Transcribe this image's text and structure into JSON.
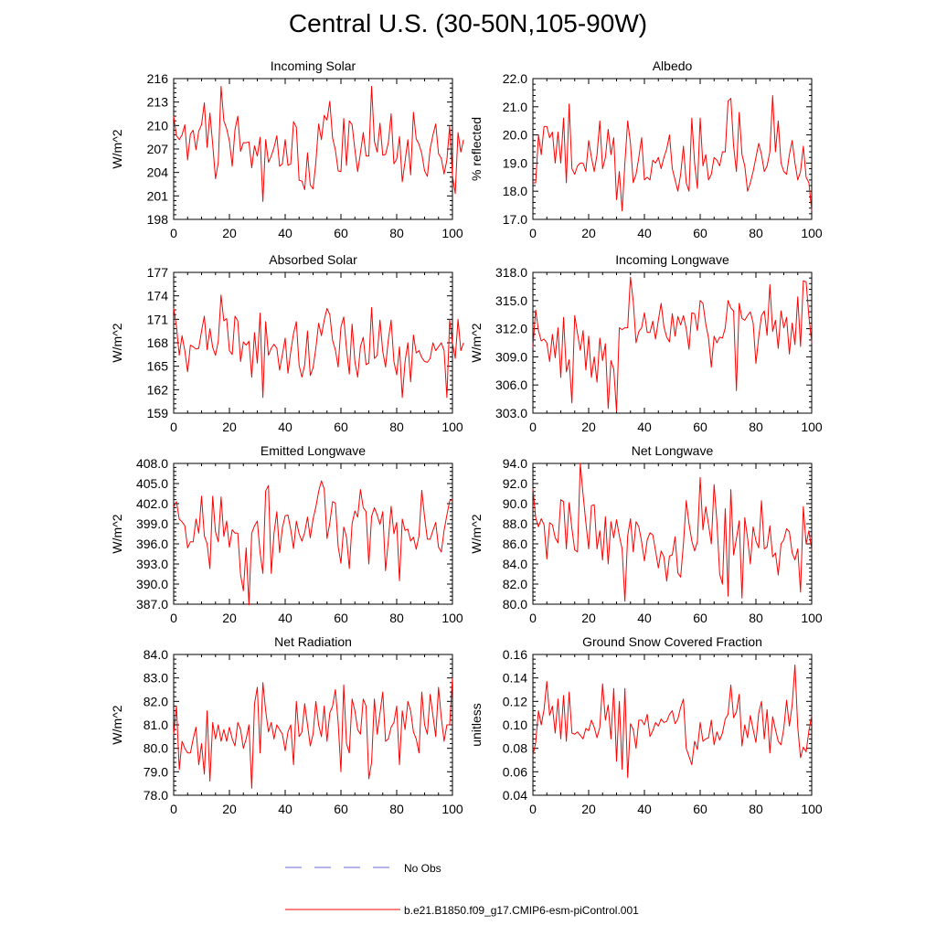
{
  "title": "Central U.S. (30-50N,105-90W)",
  "colors": {
    "series": "#ff0000",
    "obs": "#6a6ad8",
    "axis": "#000000"
  },
  "legend": [
    {
      "label": "No Obs",
      "style": "dashed",
      "color": "#6a6ad8"
    },
    {
      "label": "b.e21.B1850.f09_g17.CMIP6-esm-piControl.001",
      "style": "solid",
      "color": "#ff0000"
    }
  ],
  "chart_data": [
    {
      "type": "line",
      "title": "Incoming Solar",
      "ylabel": "W/m^2",
      "xlim": [
        0,
        100
      ],
      "ylim": [
        198,
        216
      ],
      "xticks": [
        "0",
        "20",
        "40",
        "60",
        "80",
        "100"
      ],
      "yticks": [
        "198",
        "201",
        "204",
        "207",
        "210",
        "213",
        "216"
      ],
      "series": [
        {
          "values": [
            211.2,
            208.7,
            208.2,
            208.8,
            210.1,
            205.6,
            208.9,
            209.4,
            206.9,
            209.3,
            210.1,
            212.9,
            207.2,
            211.6,
            207.6,
            203.2,
            205.3,
            215.0,
            210.6,
            209.6,
            208.0,
            204.8,
            209.5,
            211.2,
            206.7,
            207.8,
            207.8,
            207.9,
            204.6,
            207.4,
            206.1,
            208.5,
            200.3,
            208.2,
            205.3,
            206.1,
            207.2,
            208.7,
            204.8,
            205.1,
            208.2,
            204.9,
            205.1,
            210.5,
            209.8,
            203.0,
            202.9,
            201.8,
            206.5,
            202.4,
            201.9,
            205.3,
            210.2,
            208.2,
            211.3,
            210.7,
            213.1,
            208.4,
            206.9,
            204.2,
            204.1,
            210.9,
            204.9,
            210.6,
            210.1,
            206.9,
            204.1,
            206.5,
            209.1,
            206.1,
            206.1,
            215.0,
            208.0,
            206.6,
            210.3,
            206.2,
            206.3,
            207.8,
            211.5,
            205.1,
            205.7,
            208.6,
            202.8,
            205.4,
            208.2,
            203.7,
            211.7,
            208.3,
            207.6,
            206.4,
            204.2,
            203.5,
            207.0,
            208.8,
            210.2,
            206.4,
            205.8,
            203.8,
            205.6,
            209.9,
            203.6,
            201.3,
            209.1,
            206.6,
            208.2
          ]
        }
      ]
    },
    {
      "type": "line",
      "title": "Albedo",
      "ylabel": "% reflected",
      "xlim": [
        0,
        100
      ],
      "ylim": [
        17.0,
        22.0
      ],
      "xticks": [
        "0",
        "20",
        "40",
        "60",
        "80",
        "100"
      ],
      "yticks": [
        "17.0",
        "18.0",
        "19.0",
        "20.0",
        "21.0",
        "22.0"
      ],
      "series": [
        {
          "values": [
            18.3,
            18.3,
            20.0,
            19.3,
            20.3,
            20.3,
            19.9,
            20.1,
            19.0,
            20.1,
            19.0,
            20.6,
            18.3,
            21.1,
            18.8,
            18.6,
            18.9,
            19.0,
            19.0,
            18.7,
            19.8,
            19.2,
            18.7,
            19.3,
            20.5,
            18.8,
            19.2,
            20.2,
            19.3,
            19.9,
            17.7,
            18.7,
            17.3,
            19.0,
            20.5,
            19.7,
            18.3,
            18.6,
            19.2,
            19.9,
            18.4,
            18.5,
            18.4,
            19.1,
            19.0,
            19.2,
            18.8,
            19.2,
            19.5,
            20.0,
            18.8,
            18.4,
            18.0,
            18.6,
            19.6,
            18.3,
            18.0,
            20.6,
            19.0,
            18.1,
            20.6,
            18.9,
            19.3,
            18.4,
            18.6,
            19.2,
            19.1,
            18.9,
            19.4,
            19.4,
            21.2,
            21.3,
            19.6,
            18.7,
            20.8,
            19.3,
            18.9,
            18.0,
            18.3,
            18.7,
            19.2,
            19.7,
            19.3,
            18.7,
            18.9,
            19.4,
            21.4,
            19.4,
            20.5,
            19.0,
            18.7,
            18.6,
            19.3,
            19.8,
            19.0,
            18.4,
            18.7,
            19.6,
            18.5,
            18.3,
            17.3
          ]
        }
      ]
    },
    {
      "type": "line",
      "title": "Absorbed Solar",
      "ylabel": "W/m^2",
      "xlim": [
        0,
        100
      ],
      "ylim": [
        159,
        177
      ],
      "xticks": [
        "0",
        "20",
        "40",
        "60",
        "80",
        "100"
      ],
      "yticks": [
        "159",
        "162",
        "165",
        "168",
        "171",
        "174",
        "177"
      ],
      "series": [
        {
          "values": [
            172.4,
            170.1,
            166.4,
            168.9,
            167.0,
            164.3,
            167.7,
            167.5,
            167.2,
            167.3,
            169.5,
            171.4,
            167.1,
            169.8,
            167.4,
            166.4,
            168.2,
            174.1,
            170.8,
            171.1,
            167.0,
            166.5,
            171.4,
            170.8,
            165.6,
            168.1,
            167.7,
            168.2,
            163.6,
            169.3,
            165.4,
            171.8,
            161.0,
            170.7,
            166.4,
            167.3,
            167.8,
            167.3,
            164.5,
            166.5,
            168.6,
            164.1,
            166.9,
            169.2,
            170.7,
            165.1,
            163.6,
            165.2,
            169.5,
            163.8,
            164.8,
            167.3,
            170.5,
            168.9,
            170.9,
            172.4,
            171.6,
            168.3,
            167.1,
            164.9,
            170.0,
            171.3,
            167.2,
            164.0,
            170.4,
            165.6,
            163.6,
            167.5,
            168.7,
            165.2,
            165.4,
            172.5,
            166.0,
            166.4,
            170.9,
            166.9,
            164.9,
            168.4,
            170.9,
            165.6,
            163.9,
            167.5,
            161.0,
            165.6,
            168.0,
            163.0,
            169.0,
            166.7,
            167.0,
            166.1,
            165.6,
            165.5,
            166.0,
            168.0,
            167.0,
            167.5,
            168.0,
            167.0,
            161.0,
            170.9,
            168.0,
            166.0,
            171.0,
            167.0,
            168.0
          ]
        }
      ]
    },
    {
      "type": "line",
      "title": "Incoming Longwave",
      "ylabel": "W/m^2",
      "xlim": [
        0,
        100
      ],
      "ylim": [
        303.0,
        318.0
      ],
      "xticks": [
        "0",
        "20",
        "40",
        "60",
        "80",
        "100"
      ],
      "yticks": [
        "303.0",
        "306.0",
        "309.0",
        "312.0",
        "315.0",
        "318.0"
      ],
      "series": [
        {
          "values": [
            310.0,
            314.0,
            311.8,
            310.7,
            310.9,
            310.5,
            308.5,
            311.4,
            308.9,
            312.1,
            306.8,
            313.2,
            307.4,
            308.7,
            304.1,
            313.4,
            311.5,
            309.7,
            311.8,
            307.6,
            311.2,
            306.8,
            309.0,
            306.3,
            311.0,
            308.6,
            310.4,
            303.5,
            308.6,
            307.7,
            303.2,
            312.1,
            311.9,
            312.1,
            312.1,
            317.5,
            314.9,
            310.5,
            311.7,
            312.1,
            313.7,
            311.6,
            311.6,
            312.8,
            310.9,
            312.9,
            314.7,
            312.2,
            311.1,
            310.6,
            313.6,
            311.2,
            313.3,
            312.4,
            313.4,
            312.0,
            309.8,
            313.7,
            313.6,
            311.8,
            315.0,
            314.7,
            312.5,
            311.0,
            307.9,
            311.2,
            310.5,
            311.1,
            311.0,
            312.1,
            315.0,
            314.2,
            313.9,
            305.4,
            314.7,
            313.1,
            312.9,
            313.4,
            313.8,
            312.6,
            308.3,
            311.1,
            313.4,
            313.9,
            311.3,
            316.7,
            311.7,
            312.9,
            309.9,
            313.9,
            312.1,
            313.2,
            309.3,
            312.6,
            310.3,
            315.4,
            310.1,
            317.1,
            317.0,
            313.3,
            310.5
          ]
        }
      ]
    },
    {
      "type": "line",
      "title": "Emitted Longwave",
      "ylabel": "W/m^2",
      "xlim": [
        0,
        100
      ],
      "ylim": [
        387.0,
        408.0
      ],
      "xticks": [
        "0",
        "20",
        "40",
        "60",
        "80",
        "100"
      ],
      "yticks": [
        "387.0",
        "390.0",
        "393.0",
        "396.0",
        "399.0",
        "402.0",
        "405.0",
        "408.0"
      ],
      "series": [
        {
          "values": [
            401.5,
            402.3,
            399.7,
            399.3,
            398.7,
            395.4,
            396.3,
            396.3,
            399.7,
            397.6,
            403.1,
            397.2,
            396.0,
            392.3,
            403.1,
            397.8,
            396.3,
            403.0,
            397.1,
            399.4,
            395.5,
            398.1,
            397.6,
            397.6,
            391.4,
            389.0,
            395.4,
            386.9,
            397.6,
            398.7,
            399.4,
            394.7,
            391.6,
            403.9,
            404.7,
            391.6,
            397.6,
            400.8,
            394.7,
            398.4,
            400.2,
            400.3,
            398.1,
            395.3,
            399.4,
            397.5,
            396.4,
            397.7,
            400.0,
            396.9,
            399.7,
            401.5,
            403.8,
            405.4,
            404.2,
            396.8,
            399.1,
            402.3,
            402.1,
            395.6,
            393.1,
            398.5,
            397.0,
            392.3,
            399.0,
            400.9,
            400.0,
            404.1,
            401.4,
            400.8,
            393.0,
            400.1,
            401.4,
            400.3,
            398.9,
            400.8,
            392.0,
            396.5,
            401.6,
            397.5,
            399.2,
            390.5,
            399.7,
            398.0,
            398.2,
            396.4,
            397.0,
            395.2,
            397.2,
            404.0,
            400.0,
            396.7,
            396.7,
            398.0,
            399.2,
            395.5,
            394.8,
            398.0,
            400.3,
            402.4,
            402.6
          ]
        }
      ]
    },
    {
      "type": "line",
      "title": "Net Longwave",
      "ylabel": "W/m^2",
      "xlim": [
        0,
        100
      ],
      "ylim": [
        80.0,
        94.0
      ],
      "xticks": [
        "0",
        "20",
        "40",
        "60",
        "80",
        "100"
      ],
      "yticks": [
        "80.0",
        "82.0",
        "84.0",
        "86.0",
        "88.0",
        "90.0",
        "92.0",
        "94.0"
      ],
      "series": [
        {
          "values": [
            91.5,
            88.6,
            87.7,
            88.5,
            87.9,
            84.5,
            88.1,
            87.9,
            86.6,
            86.1,
            90.4,
            90.2,
            85.5,
            90.1,
            87.5,
            85.4,
            85.2,
            94.0,
            90.9,
            88.1,
            85.5,
            89.8,
            89.9,
            85.5,
            87.3,
            84.4,
            88.7,
            84.0,
            88.2,
            86.6,
            88.4,
            86.8,
            85.5,
            80.3,
            86.8,
            88.5,
            85.2,
            88.2,
            87.7,
            86.2,
            84.3,
            86.4,
            87.1,
            86.9,
            85.3,
            83.6,
            85.3,
            84.7,
            82.3,
            84.8,
            84.9,
            86.7,
            83.1,
            82.7,
            86.0,
            90.3,
            88.0,
            86.3,
            85.3,
            86.2,
            92.6,
            87.4,
            89.7,
            87.9,
            86.0,
            91.9,
            88.2,
            83.0,
            82.0,
            89.5,
            80.8,
            91.4,
            84.9,
            86.5,
            88.3,
            80.6,
            88.6,
            86.6,
            84.0,
            87.7,
            86.3,
            85.6,
            90.3,
            85.5,
            85.7,
            87.8,
            84.7,
            85.1,
            82.9,
            86.0,
            86.4,
            87.5,
            87.2,
            85.1,
            84.4,
            85.5,
            81.2,
            89.7,
            86.0,
            87.3,
            85.4
          ]
        }
      ]
    },
    {
      "type": "line",
      "title": "Net Radiation",
      "ylabel": "W/m^2",
      "xlim": [
        0,
        100
      ],
      "ylim": [
        78.0,
        84.0
      ],
      "xticks": [
        "0",
        "20",
        "40",
        "60",
        "80",
        "100"
      ],
      "yticks": [
        "78.0",
        "79.0",
        "80.0",
        "81.0",
        "82.0",
        "83.0",
        "84.0"
      ],
      "series": [
        {
          "values": [
            80.6,
            81.8,
            79.1,
            80.3,
            80.0,
            79.8,
            79.8,
            80.4,
            80.9,
            79.3,
            80.2,
            78.9,
            81.6,
            78.6,
            81.1,
            80.4,
            81.0,
            80.3,
            80.8,
            80.3,
            80.9,
            80.4,
            80.1,
            81.1,
            80.8,
            80.0,
            80.4,
            81.0,
            78.3,
            81.9,
            82.6,
            79.8,
            82.8,
            81.6,
            80.7,
            81.1,
            80.4,
            81.0,
            80.8,
            80.6,
            79.9,
            80.7,
            81.0,
            79.3,
            82.0,
            80.5,
            80.7,
            81.9,
            81.0,
            80.1,
            80.6,
            82.0,
            81.0,
            80.5,
            81.8,
            80.3,
            81.5,
            81.8,
            82.5,
            81.1,
            79.0,
            82.7,
            80.2,
            79.8,
            82.1,
            81.6,
            80.8,
            80.6,
            82.1,
            81.8,
            78.7,
            79.4,
            82.1,
            80.6,
            81.5,
            82.4,
            80.3,
            80.4,
            80.9,
            81.1,
            81.8,
            79.3,
            81.6,
            80.8,
            82.0,
            81.6,
            80.7,
            80.4,
            79.8,
            82.4,
            81.0,
            80.6,
            82.3,
            81.4,
            80.5,
            82.6,
            81.3,
            80.3,
            81.0,
            81.0,
            83.0
          ]
        }
      ]
    },
    {
      "type": "line",
      "title": "Ground Snow Covered Fraction",
      "ylabel": "unitless",
      "xlim": [
        0,
        100
      ],
      "ylim": [
        0.04,
        0.16
      ],
      "xticks": [
        "0",
        "20",
        "40",
        "60",
        "80",
        "100"
      ],
      "yticks": [
        "0.04",
        "0.06",
        "0.08",
        "0.10",
        "0.12",
        "0.14",
        "0.16"
      ],
      "series": [
        {
          "values": [
            0.074,
            0.085,
            0.112,
            0.1,
            0.113,
            0.137,
            0.108,
            0.116,
            0.093,
            0.122,
            0.088,
            0.125,
            0.086,
            0.128,
            0.093,
            0.092,
            0.094,
            0.091,
            0.088,
            0.097,
            0.095,
            0.104,
            0.098,
            0.089,
            0.098,
            0.135,
            0.104,
            0.117,
            0.088,
            0.131,
            0.069,
            0.12,
            0.062,
            0.131,
            0.055,
            0.101,
            0.096,
            0.08,
            0.104,
            0.104,
            0.1,
            0.109,
            0.09,
            0.095,
            0.102,
            0.099,
            0.105,
            0.102,
            0.103,
            0.109,
            0.112,
            0.101,
            0.105,
            0.115,
            0.122,
            0.08,
            0.073,
            0.066,
            0.086,
            0.079,
            0.102,
            0.086,
            0.088,
            0.089,
            0.104,
            0.083,
            0.094,
            0.087,
            0.093,
            0.105,
            0.109,
            0.134,
            0.106,
            0.111,
            0.126,
            0.082,
            0.1,
            0.089,
            0.108,
            0.096,
            0.085,
            0.11,
            0.12,
            0.088,
            0.113,
            0.076,
            0.107,
            0.096,
            0.086,
            0.083,
            0.097,
            0.121,
            0.099,
            0.117,
            0.151,
            0.098,
            0.072,
            0.081,
            0.077,
            0.095,
            0.108
          ]
        }
      ]
    }
  ]
}
